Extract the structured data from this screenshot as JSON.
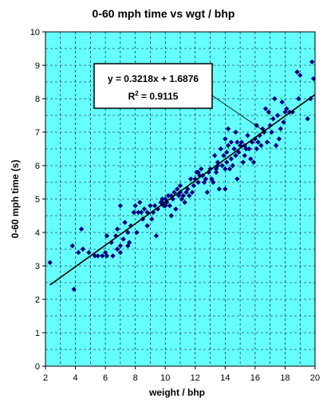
{
  "chart_data": {
    "type": "scatter",
    "title": "0-60 mph time vs wgt / bhp",
    "xlabel": "weight / bhp",
    "ylabel": "0-60 mph time (s)",
    "xlim": [
      2,
      20
    ],
    "ylim": [
      0,
      10
    ],
    "x_ticks": [
      "2",
      "4",
      "6",
      "8",
      "10",
      "12",
      "14",
      "16",
      "18",
      "20"
    ],
    "y_ticks": [
      "0",
      "1",
      "2",
      "3",
      "4",
      "5",
      "6",
      "7",
      "8",
      "9",
      "10"
    ],
    "x_minor_step": 1,
    "y_minor_step": 0.5,
    "grid": true,
    "plot_background": "#66FFFF",
    "marker_color": "#000080",
    "trendline": {
      "slope": 0.3218,
      "intercept": 1.6876,
      "x_range": [
        2.3,
        20
      ],
      "color": "#000000",
      "equation_label": "y = 0.3218x + 1.6876",
      "r_squared_label": "R",
      "r_squared_sup": "2",
      "r_squared_value": " = 0.9115"
    },
    "points": [
      [
        2.3,
        3.1
      ],
      [
        3.8,
        3.6
      ],
      [
        3.9,
        2.3
      ],
      [
        4.2,
        3.4
      ],
      [
        4.4,
        4.1
      ],
      [
        4.5,
        3.5
      ],
      [
        4.9,
        3.4
      ],
      [
        5.3,
        3.3
      ],
      [
        5.5,
        3.3
      ],
      [
        5.8,
        3.3
      ],
      [
        6.0,
        3.4
      ],
      [
        6.1,
        3.9
      ],
      [
        6.1,
        3.3
      ],
      [
        6.4,
        3.7
      ],
      [
        6.5,
        3.3
      ],
      [
        6.7,
        3.9
      ],
      [
        6.8,
        4.1
      ],
      [
        6.8,
        3.5
      ],
      [
        7.0,
        3.6
      ],
      [
        7.0,
        4.8
      ],
      [
        7.0,
        3.4
      ],
      [
        7.2,
        3.8
      ],
      [
        7.3,
        4.3
      ],
      [
        7.5,
        4.0
      ],
      [
        7.5,
        3.6
      ],
      [
        7.6,
        3.7
      ],
      [
        7.7,
        4.2
      ],
      [
        7.9,
        4.6
      ],
      [
        8.0,
        4.8
      ],
      [
        8.1,
        4.0
      ],
      [
        8.2,
        4.6
      ],
      [
        8.3,
        4.9
      ],
      [
        8.4,
        4.6
      ],
      [
        8.5,
        4.4
      ],
      [
        8.6,
        4.7
      ],
      [
        8.8,
        4.6
      ],
      [
        8.8,
        4.2
      ],
      [
        9.0,
        4.8
      ],
      [
        9.1,
        4.4
      ],
      [
        9.2,
        4.6
      ],
      [
        9.3,
        4.8
      ],
      [
        9.4,
        3.9
      ],
      [
        9.5,
        4.7
      ],
      [
        9.7,
        4.9
      ],
      [
        9.8,
        4.9
      ],
      [
        9.8,
        5.0
      ],
      [
        9.9,
        4.8
      ],
      [
        10.0,
        5.0
      ],
      [
        10.0,
        4.8
      ],
      [
        10.1,
        4.9
      ],
      [
        10.2,
        5.1
      ],
      [
        10.3,
        4.8
      ],
      [
        10.4,
        4.5
      ],
      [
        10.4,
        5.1
      ],
      [
        10.5,
        5.0
      ],
      [
        10.6,
        5.2
      ],
      [
        10.7,
        4.7
      ],
      [
        10.8,
        5.3
      ],
      [
        10.9,
        5.1
      ],
      [
        11.0,
        5.2
      ],
      [
        11.0,
        5.4
      ],
      [
        11.1,
        5.0
      ],
      [
        11.2,
        5.1
      ],
      [
        11.3,
        4.9
      ],
      [
        11.4,
        5.2
      ],
      [
        11.5,
        5.3
      ],
      [
        11.6,
        5.1
      ],
      [
        11.7,
        5.6
      ],
      [
        11.8,
        5.2
      ],
      [
        11.9,
        5.4
      ],
      [
        12.0,
        5.6
      ],
      [
        12.1,
        5.8
      ],
      [
        12.2,
        5.5
      ],
      [
        12.2,
        5.8
      ],
      [
        12.3,
        5.7
      ],
      [
        12.4,
        5.9
      ],
      [
        12.5,
        5.7
      ],
      [
        12.6,
        5.5
      ],
      [
        12.7,
        5.6
      ],
      [
        12.8,
        5.2
      ],
      [
        12.9,
        5.8
      ],
      [
        13.0,
        5.9
      ],
      [
        13.1,
        5.6
      ],
      [
        13.2,
        5.5
      ],
      [
        13.3,
        6.3
      ],
      [
        13.4,
        5.9
      ],
      [
        13.4,
        5.8
      ],
      [
        13.5,
        6.0
      ],
      [
        13.5,
        6.1
      ],
      [
        13.6,
        5.3
      ],
      [
        13.7,
        6.5
      ],
      [
        13.8,
        6.0
      ],
      [
        13.9,
        6.3
      ],
      [
        14.0,
        5.9
      ],
      [
        14.0,
        5.3
      ],
      [
        14.0,
        6.8
      ],
      [
        14.1,
        6.1
      ],
      [
        14.1,
        6.4
      ],
      [
        14.2,
        6.6
      ],
      [
        14.2,
        7.1
      ],
      [
        14.3,
        5.9
      ],
      [
        14.4,
        6.2
      ],
      [
        14.4,
        6.7
      ],
      [
        14.5,
        6.0
      ],
      [
        14.6,
        6.5
      ],
      [
        14.7,
        7.0
      ],
      [
        14.7,
        6.3
      ],
      [
        14.8,
        5.6
      ],
      [
        14.8,
        6.7
      ],
      [
        14.9,
        6.4
      ],
      [
        15.0,
        6.6
      ],
      [
        15.1,
        6.7
      ],
      [
        15.2,
        6.1
      ],
      [
        15.3,
        6.3
      ],
      [
        15.3,
        6.6
      ],
      [
        15.4,
        6.5
      ],
      [
        15.5,
        6.9
      ],
      [
        15.6,
        6.5
      ],
      [
        15.7,
        6.2
      ],
      [
        15.8,
        6.7
      ],
      [
        15.9,
        6.1
      ],
      [
        16.0,
        6.8
      ],
      [
        16.1,
        7.2
      ],
      [
        16.1,
        6.5
      ],
      [
        16.2,
        6.7
      ],
      [
        16.3,
        6.9
      ],
      [
        16.4,
        6.6
      ],
      [
        16.5,
        7.1
      ],
      [
        16.6,
        7.0
      ],
      [
        16.7,
        7.7
      ],
      [
        16.8,
        6.7
      ],
      [
        16.9,
        7.6
      ],
      [
        17.0,
        7.2
      ],
      [
        17.1,
        7.0
      ],
      [
        17.2,
        7.4
      ],
      [
        17.3,
        8.0
      ],
      [
        17.4,
        6.6
      ],
      [
        17.5,
        7.5
      ],
      [
        17.6,
        6.8
      ],
      [
        17.7,
        7.1
      ],
      [
        17.8,
        7.9
      ],
      [
        17.9,
        7.3
      ],
      [
        18.0,
        7.6
      ],
      [
        18.1,
        7.7
      ],
      [
        18.3,
        7.6
      ],
      [
        18.5,
        7.6
      ],
      [
        18.8,
        8.8
      ],
      [
        18.9,
        8.0
      ],
      [
        19.0,
        8.7
      ],
      [
        19.5,
        7.4
      ],
      [
        19.7,
        8.0
      ],
      [
        19.8,
        9.1
      ],
      [
        19.9,
        8.6
      ]
    ]
  }
}
